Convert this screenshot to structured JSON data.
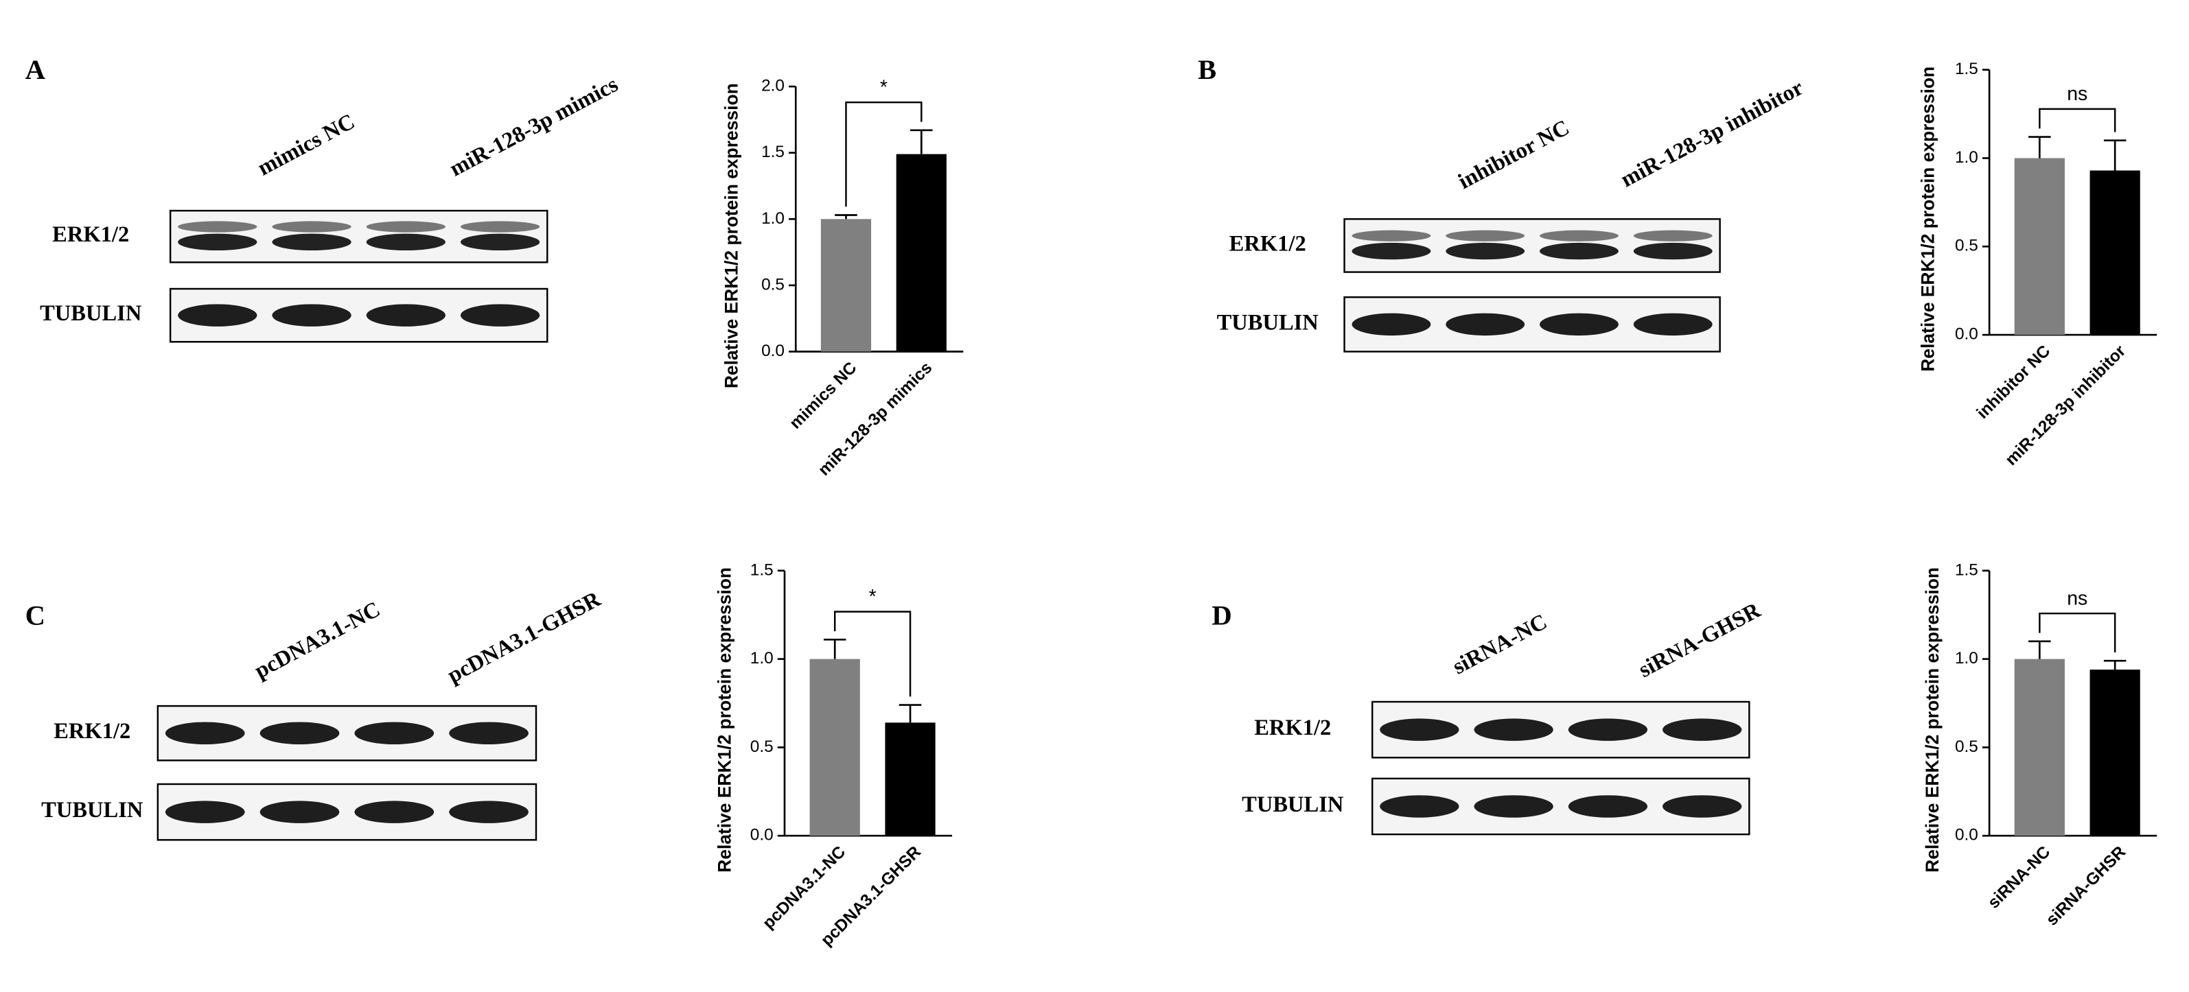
{
  "blots": [
    {
      "panel": "A",
      "lanes": [
        "mimics  NC",
        "miR-128-3p mimics"
      ],
      "rows": [
        "ERK1/2",
        "TUBULIN"
      ]
    },
    {
      "panel": "B",
      "lanes": [
        "inhibitor NC",
        "miR-128-3p inhibitor"
      ],
      "rows": [
        "ERK1/2",
        "TUBULIN"
      ]
    },
    {
      "panel": "C",
      "lanes": [
        "pcDNA3.1-NC",
        "pcDNA3.1-GHSR"
      ],
      "rows": [
        "ERK1/2",
        "TUBULIN"
      ]
    },
    {
      "panel": "D",
      "lanes": [
        "siRNA-NC",
        "siRNA-GHSR"
      ],
      "rows": [
        "ERK1/2",
        "TUBULIN"
      ]
    }
  ],
  "chart_data": [
    {
      "type": "bar",
      "y_label": "Relative ERK1/2 protein expression",
      "categories": [
        "mimics NC",
        "miR-128-3p mimics"
      ],
      "values": [
        1.0,
        1.49
      ],
      "errors": [
        0.03,
        0.18
      ],
      "colors": [
        "#808080",
        "#000000"
      ],
      "significance": "*",
      "ylim": [
        0,
        2
      ],
      "yticks": [
        {
          "value": 0,
          "label": "0.0"
        },
        {
          "value": 0.5,
          "label": "0.5"
        },
        {
          "value": 1,
          "label": "1.0"
        },
        {
          "value": 1.5,
          "label": "1.5"
        },
        {
          "value": 2,
          "label": "2.0"
        }
      ]
    },
    {
      "type": "bar",
      "y_label": "Relative ERK1/2 protein expression",
      "categories": [
        "inhibitor NC",
        "miR-128-3p inhibitor"
      ],
      "values": [
        1.0,
        0.93
      ],
      "errors": [
        0.12,
        0.17
      ],
      "colors": [
        "#808080",
        "#000000"
      ],
      "significance": "ns",
      "ylim": [
        0,
        1.5
      ],
      "yticks": [
        {
          "value": 0,
          "label": "0.0"
        },
        {
          "value": 0.5,
          "label": "0.5"
        },
        {
          "value": 1,
          "label": "1.0"
        },
        {
          "value": 1.5,
          "label": "1.5"
        }
      ]
    },
    {
      "type": "bar",
      "y_label": "Relative ERK1/2 protein expression",
      "categories": [
        "pcDNA3.1-NC",
        "pcDNA3.1-GHSR"
      ],
      "values": [
        1.0,
        0.64
      ],
      "errors": [
        0.11,
        0.1
      ],
      "colors": [
        "#808080",
        "#000000"
      ],
      "significance": "*",
      "ylim": [
        0,
        1.5
      ],
      "yticks": [
        {
          "value": 0,
          "label": "0.0"
        },
        {
          "value": 0.5,
          "label": "0.5"
        },
        {
          "value": 1,
          "label": "1.0"
        },
        {
          "value": 1.5,
          "label": "1.5"
        }
      ]
    },
    {
      "type": "bar",
      "y_label": "Relative ERK1/2 protein expression",
      "categories": [
        "siRNA-NC",
        "siRNA-GHSR"
      ],
      "values": [
        1.0,
        0.94
      ],
      "errors": [
        0.1,
        0.05
      ],
      "colors": [
        "#808080",
        "#000000"
      ],
      "significance": "ns",
      "ylim": [
        0,
        1.5
      ],
      "yticks": [
        {
          "value": 0,
          "label": "0.0"
        },
        {
          "value": 0.5,
          "label": "0.5"
        },
        {
          "value": 1,
          "label": "1.0"
        },
        {
          "value": 1.5,
          "label": "1.5"
        }
      ]
    }
  ]
}
